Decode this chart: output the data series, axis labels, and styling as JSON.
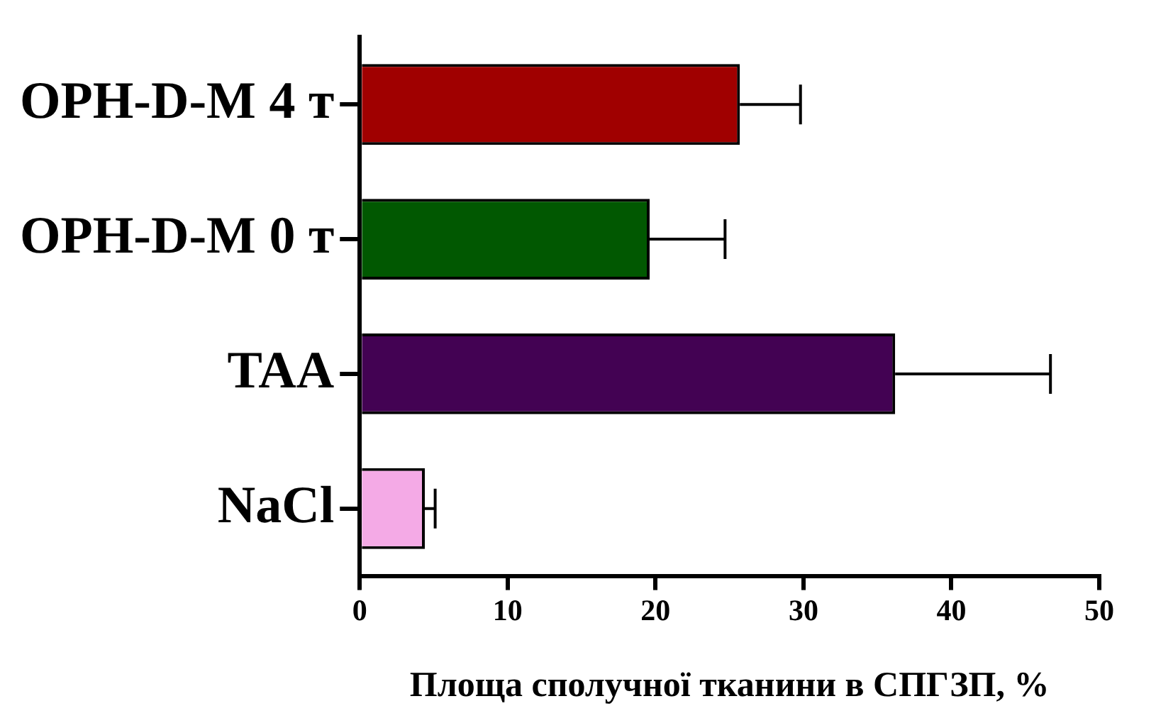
{
  "chart_data": {
    "type": "bar",
    "orientation": "horizontal",
    "xlabel": "Площа сполучної тканини в СПГЗП, %",
    "categories": [
      "OPH-D-M 4 т",
      "OPH-D-M 0 т",
      "TAA",
      "NaCl"
    ],
    "values": [
      25.7,
      19.6,
      36.2,
      4.4
    ],
    "colors": [
      "#a00000",
      "#015801",
      "#430253",
      "#f4aae6"
    ],
    "errors": [
      [
        25.7,
        29.8
      ],
      [
        19.6,
        24.7
      ],
      [
        36.2,
        46.7
      ],
      [
        4.4,
        5.1
      ]
    ],
    "xlim": [
      0,
      50
    ],
    "xticks": [
      0,
      10,
      20,
      30,
      40,
      50
    ],
    "legend": false
  }
}
